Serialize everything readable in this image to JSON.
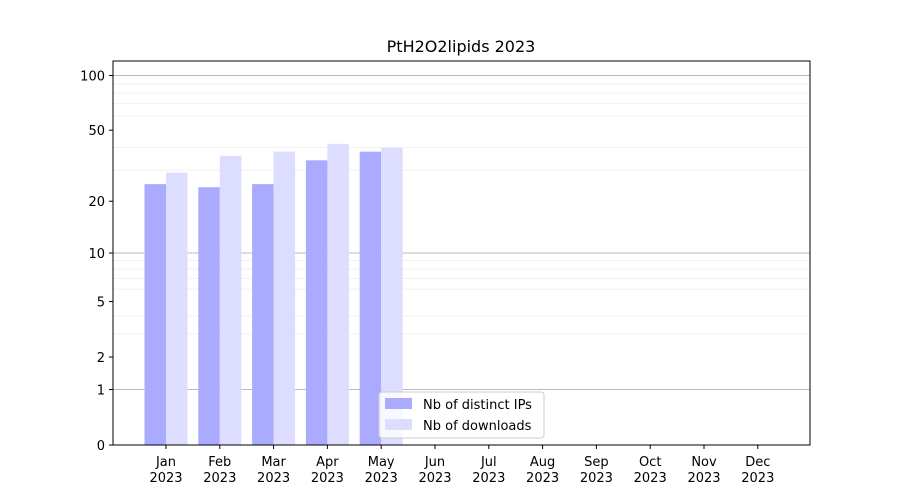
{
  "chart_data": {
    "type": "bar",
    "title": "PtH2O2lipids 2023",
    "xlabel": "",
    "ylabel": "",
    "categories": [
      [
        "Jan",
        "2023"
      ],
      [
        "Feb",
        "2023"
      ],
      [
        "Mar",
        "2023"
      ],
      [
        "Apr",
        "2023"
      ],
      [
        "May",
        "2023"
      ],
      [
        "Jun",
        "2023"
      ],
      [
        "Jul",
        "2023"
      ],
      [
        "Aug",
        "2023"
      ],
      [
        "Sep",
        "2023"
      ],
      [
        "Oct",
        "2023"
      ],
      [
        "Nov",
        "2023"
      ],
      [
        "Dec",
        "2023"
      ]
    ],
    "series": [
      {
        "name": "Nb of distinct IPs",
        "color": "#aaaaff",
        "values": [
          25,
          24,
          25,
          34,
          38,
          0,
          0,
          0,
          0,
          0,
          0,
          0
        ]
      },
      {
        "name": "Nb of downloads",
        "color": "#ddddff",
        "values": [
          29,
          36,
          38,
          42,
          40,
          0,
          0,
          0,
          0,
          0,
          0,
          0
        ]
      }
    ],
    "y_scale": "log1p",
    "ylim": [
      0,
      120
    ],
    "y_ticks": [
      0,
      1,
      2,
      5,
      10,
      20,
      50,
      100
    ],
    "grid": true,
    "legend_position": "lower-center"
  }
}
